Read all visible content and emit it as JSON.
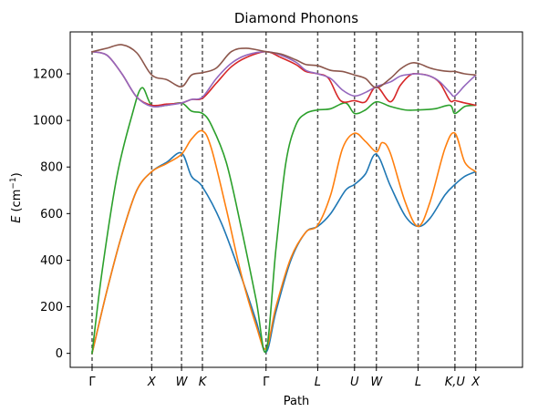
{
  "chart_data": {
    "type": "line",
    "title": "Diamond Phonons",
    "xlabel": "Path",
    "ylabel": {
      "italic": "E",
      "open": "(cm",
      "sup": "−1",
      "close": ")"
    },
    "ylim": [
      -60,
      1380
    ],
    "yticks": [
      0,
      200,
      400,
      600,
      800,
      1000,
      1200
    ],
    "xlim": [
      -0.22,
      4.33
    ],
    "high_symmetry_points": [
      {
        "label": "Γ",
        "x": 0.0
      },
      {
        "label": "X",
        "x": 0.6
      },
      {
        "label": "W",
        "x": 0.9
      },
      {
        "label": "K",
        "x": 1.11
      },
      {
        "label": "Γ",
        "x": 1.75
      },
      {
        "label": "L",
        "x": 2.27
      },
      {
        "label": "U",
        "x": 2.64
      },
      {
        "label": "W",
        "x": 2.86
      },
      {
        "label": "L",
        "x": 3.28
      },
      {
        "label": "K,U",
        "x": 3.65
      },
      {
        "label": "X",
        "x": 3.86
      }
    ],
    "grid": false,
    "series": [
      {
        "color": "#1f77b4",
        "x": [
          0.0,
          0.15,
          0.3,
          0.45,
          0.6,
          0.75,
          0.9,
          1.0,
          1.11,
          1.3,
          1.5,
          1.65,
          1.75,
          1.85,
          2.0,
          2.15,
          2.27,
          2.4,
          2.55,
          2.64,
          2.75,
          2.86,
          3.0,
          3.15,
          3.28,
          3.4,
          3.55,
          3.65,
          3.75,
          3.86
        ],
        "y": [
          0,
          270,
          510,
          700,
          780,
          820,
          860,
          760,
          715,
          560,
          330,
          140,
          5,
          180,
          400,
          520,
          545,
          600,
          700,
          725,
          770,
          855,
          720,
          590,
          545,
          580,
          680,
          725,
          760,
          780
        ]
      },
      {
        "color": "#ff7f0e",
        "x": [
          0.0,
          0.15,
          0.3,
          0.45,
          0.6,
          0.75,
          0.9,
          1.0,
          1.11,
          1.2,
          1.35,
          1.5,
          1.65,
          1.75,
          1.85,
          2.0,
          2.15,
          2.27,
          2.4,
          2.52,
          2.64,
          2.75,
          2.86,
          2.92,
          3.0,
          3.15,
          3.28,
          3.4,
          3.55,
          3.65,
          3.75,
          3.86
        ],
        "y": [
          0,
          270,
          510,
          700,
          780,
          815,
          855,
          920,
          955,
          880,
          620,
          340,
          120,
          20,
          200,
          410,
          520,
          550,
          680,
          880,
          945,
          910,
          865,
          905,
          860,
          650,
          545,
          650,
          880,
          945,
          820,
          780
        ]
      },
      {
        "color": "#2ca02c",
        "x": [
          0.0,
          0.1,
          0.25,
          0.4,
          0.5,
          0.6,
          0.75,
          0.9,
          1.0,
          1.11,
          1.2,
          1.35,
          1.5,
          1.65,
          1.75,
          1.85,
          1.95,
          2.05,
          2.15,
          2.27,
          2.4,
          2.55,
          2.64,
          2.75,
          2.86,
          3.0,
          3.15,
          3.28,
          3.45,
          3.6,
          3.65,
          3.75,
          3.86
        ],
        "y": [
          0,
          350,
          760,
          1020,
          1140,
          1065,
          1065,
          1075,
          1040,
          1030,
          980,
          820,
          540,
          230,
          10,
          450,
          820,
          980,
          1030,
          1045,
          1050,
          1075,
          1030,
          1045,
          1080,
          1060,
          1045,
          1045,
          1050,
          1065,
          1030,
          1060,
          1065
        ]
      },
      {
        "color": "#d62728",
        "x": [
          0.0,
          0.15,
          0.3,
          0.45,
          0.6,
          0.75,
          0.9,
          1.0,
          1.11,
          1.25,
          1.4,
          1.55,
          1.75,
          1.9,
          2.05,
          2.15,
          2.27,
          2.38,
          2.5,
          2.64,
          2.75,
          2.86,
          3.0,
          3.1,
          3.2,
          3.28,
          3.4,
          3.5,
          3.6,
          3.65,
          3.75,
          3.86
        ],
        "y": [
          1295,
          1280,
          1200,
          1100,
          1065,
          1070,
          1075,
          1090,
          1095,
          1160,
          1230,
          1270,
          1295,
          1270,
          1240,
          1210,
          1200,
          1180,
          1085,
          1085,
          1080,
          1145,
          1080,
          1150,
          1195,
          1200,
          1190,
          1160,
          1085,
          1085,
          1075,
          1065
        ]
      },
      {
        "color": "#9467bd",
        "x": [
          0.0,
          0.15,
          0.3,
          0.45,
          0.6,
          0.75,
          0.9,
          1.0,
          1.11,
          1.25,
          1.4,
          1.55,
          1.75,
          1.9,
          2.05,
          2.15,
          2.27,
          2.4,
          2.52,
          2.64,
          2.75,
          2.86,
          3.0,
          3.1,
          3.2,
          3.28,
          3.4,
          3.5,
          3.6,
          3.65,
          3.75,
          3.86
        ],
        "y": [
          1295,
          1280,
          1200,
          1100,
          1060,
          1065,
          1075,
          1090,
          1100,
          1180,
          1245,
          1280,
          1295,
          1280,
          1250,
          1215,
          1200,
          1180,
          1130,
          1105,
          1120,
          1145,
          1165,
          1190,
          1198,
          1200,
          1190,
          1165,
          1120,
          1105,
          1150,
          1195
        ]
      },
      {
        "color": "#8c564b",
        "x": [
          0.0,
          0.15,
          0.3,
          0.45,
          0.6,
          0.75,
          0.9,
          1.0,
          1.11,
          1.25,
          1.4,
          1.55,
          1.75,
          1.9,
          2.05,
          2.15,
          2.27,
          2.4,
          2.52,
          2.64,
          2.75,
          2.86,
          3.0,
          3.1,
          3.2,
          3.28,
          3.4,
          3.5,
          3.6,
          3.65,
          3.75,
          3.86
        ],
        "y": [
          1295,
          1310,
          1325,
          1290,
          1195,
          1175,
          1145,
          1195,
          1205,
          1225,
          1295,
          1310,
          1295,
          1285,
          1260,
          1240,
          1235,
          1215,
          1210,
          1195,
          1180,
          1140,
          1180,
          1220,
          1245,
          1245,
          1225,
          1215,
          1210,
          1210,
          1200,
          1195
        ]
      }
    ]
  }
}
